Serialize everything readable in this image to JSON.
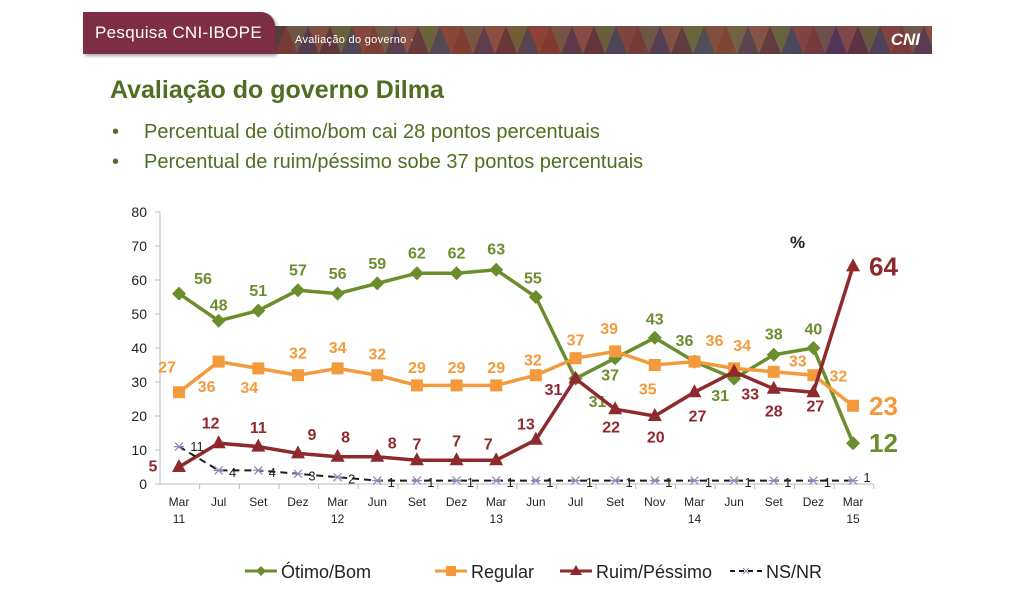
{
  "header": {
    "brand": "Pesquisa CNI-IBOPE",
    "section": "Avaliação do governo ·",
    "logo": "CNI"
  },
  "slide": {
    "title": "Avaliação do governo Dilma",
    "bullets": [
      "Percentual de ótimo/bom cai 28 pontos percentuais",
      "Percentual de ruim/péssimo sobe 37 pontos percentuais"
    ],
    "bullet_symbol": "•"
  },
  "chart_data": {
    "type": "line",
    "unit_label": "%",
    "categories": [
      "Mar|11",
      "Jul",
      "Set",
      "Dez",
      "Mar|12",
      "Jun",
      "Set",
      "Dez",
      "Mar|13",
      "Jun",
      "Jul",
      "Set",
      "Nov",
      "Mar|14",
      "Jun",
      "Set",
      "Dez",
      "Mar|15"
    ],
    "ylim": [
      0,
      80
    ],
    "yticks": [
      0,
      10,
      20,
      30,
      40,
      50,
      60,
      70,
      80
    ],
    "grid": false,
    "legend_position": "bottom",
    "series": [
      {
        "name": "Ótimo/Bom",
        "color": "#6b8e2d",
        "marker": "diamond",
        "values": [
          56,
          48,
          51,
          57,
          56,
          59,
          62,
          62,
          63,
          55,
          31,
          37,
          43,
          36,
          31,
          38,
          40,
          12
        ]
      },
      {
        "name": "Regular",
        "color": "#f39a3c",
        "marker": "square",
        "values": [
          27,
          36,
          34,
          32,
          34,
          32,
          29,
          29,
          29,
          32,
          37,
          39,
          35,
          36,
          34,
          33,
          32,
          23
        ]
      },
      {
        "name": "Ruim/Péssimo",
        "color": "#8e2a2e",
        "marker": "triangle",
        "values": [
          5,
          12,
          11,
          9,
          8,
          8,
          7,
          7,
          7,
          13,
          31,
          22,
          20,
          27,
          33,
          28,
          27,
          64
        ]
      },
      {
        "name": "NS/NR",
        "color": "#1a1a1a",
        "marker": "star",
        "dashed": true,
        "values": [
          11,
          4,
          4,
          3,
          2,
          1,
          1,
          1,
          1,
          1,
          1,
          1,
          1,
          1,
          1,
          1,
          1,
          1
        ]
      }
    ]
  }
}
